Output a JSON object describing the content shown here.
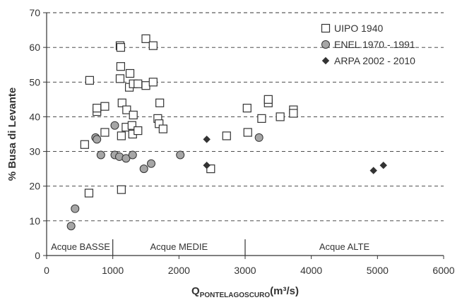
{
  "chart_data": {
    "type": "scatter",
    "xlabel": {
      "main": "Q",
      "subscript": "PONTELAGOSCURO",
      "unit": "(m³/s)"
    },
    "ylabel": "% Busa di Levante",
    "xlim": [
      0,
      6000
    ],
    "ylim": [
      0,
      70
    ],
    "x_ticks": [
      "0",
      "1000",
      "2000",
      "3000",
      "4000",
      "5000",
      "6000"
    ],
    "y_ticks": [
      "0",
      "10",
      "20",
      "30",
      "40",
      "50",
      "60",
      "70"
    ],
    "grid": "horizontal dashed",
    "legend_position": "top-right",
    "regions": [
      {
        "label": "Acque BASSE",
        "from": 0,
        "to": 1000
      },
      {
        "label": "Acque MEDIE",
        "from": 1000,
        "to": 3000
      },
      {
        "label": "Acque ALTE",
        "from": 3000,
        "to": 6000
      }
    ],
    "series": [
      {
        "name": "UIPO 1940",
        "marker": "square",
        "color": "#ffffff",
        "stroke": "#333333",
        "points": [
          [
            575,
            32
          ],
          [
            640,
            18
          ],
          [
            650,
            50.5
          ],
          [
            760,
            41.5
          ],
          [
            760,
            42.5
          ],
          [
            880,
            35.5
          ],
          [
            880,
            43
          ],
          [
            1110,
            60.5
          ],
          [
            1120,
            60
          ],
          [
            1120,
            54.5
          ],
          [
            1110,
            51
          ],
          [
            1140,
            44
          ],
          [
            1130,
            34.5
          ],
          [
            1130,
            19
          ],
          [
            1200,
            37
          ],
          [
            1210,
            42
          ],
          [
            1250,
            48.5
          ],
          [
            1260,
            52.5
          ],
          [
            1290,
            37.5
          ],
          [
            1300,
            35
          ],
          [
            1310,
            40.5
          ],
          [
            1310,
            49.5
          ],
          [
            1380,
            36
          ],
          [
            1380,
            49.5
          ],
          [
            1500,
            62.5
          ],
          [
            1500,
            49
          ],
          [
            1610,
            60.5
          ],
          [
            1610,
            50
          ],
          [
            1680,
            39.5
          ],
          [
            1700,
            38
          ],
          [
            1710,
            44
          ],
          [
            1760,
            36.5
          ],
          [
            2480,
            25
          ],
          [
            2720,
            34.5
          ],
          [
            3030,
            42.5
          ],
          [
            3040,
            35.5
          ],
          [
            3250,
            39.5
          ],
          [
            3350,
            44
          ],
          [
            3350,
            45
          ],
          [
            3530,
            40
          ],
          [
            3730,
            42
          ],
          [
            3730,
            41
          ]
        ]
      },
      {
        "name": "ENEL 1970 - 1991",
        "marker": "circle",
        "color": "#a6a6a6",
        "stroke": "#333333",
        "points": [
          [
            370,
            8.5
          ],
          [
            430,
            13.5
          ],
          [
            740,
            34
          ],
          [
            760,
            33.5
          ],
          [
            820,
            29
          ],
          [
            1030,
            37.5
          ],
          [
            1030,
            29
          ],
          [
            1100,
            28.5
          ],
          [
            1200,
            28
          ],
          [
            1300,
            29
          ],
          [
            1470,
            25
          ],
          [
            1580,
            26.5
          ],
          [
            2020,
            29
          ],
          [
            3210,
            34
          ]
        ]
      },
      {
        "name": "ARPA 2002 - 2010",
        "marker": "diamond",
        "color": "#333333",
        "stroke": "#333333",
        "points": [
          [
            2420,
            33.5
          ],
          [
            2420,
            26
          ],
          [
            4940,
            24.5
          ],
          [
            5090,
            26
          ]
        ]
      }
    ]
  }
}
